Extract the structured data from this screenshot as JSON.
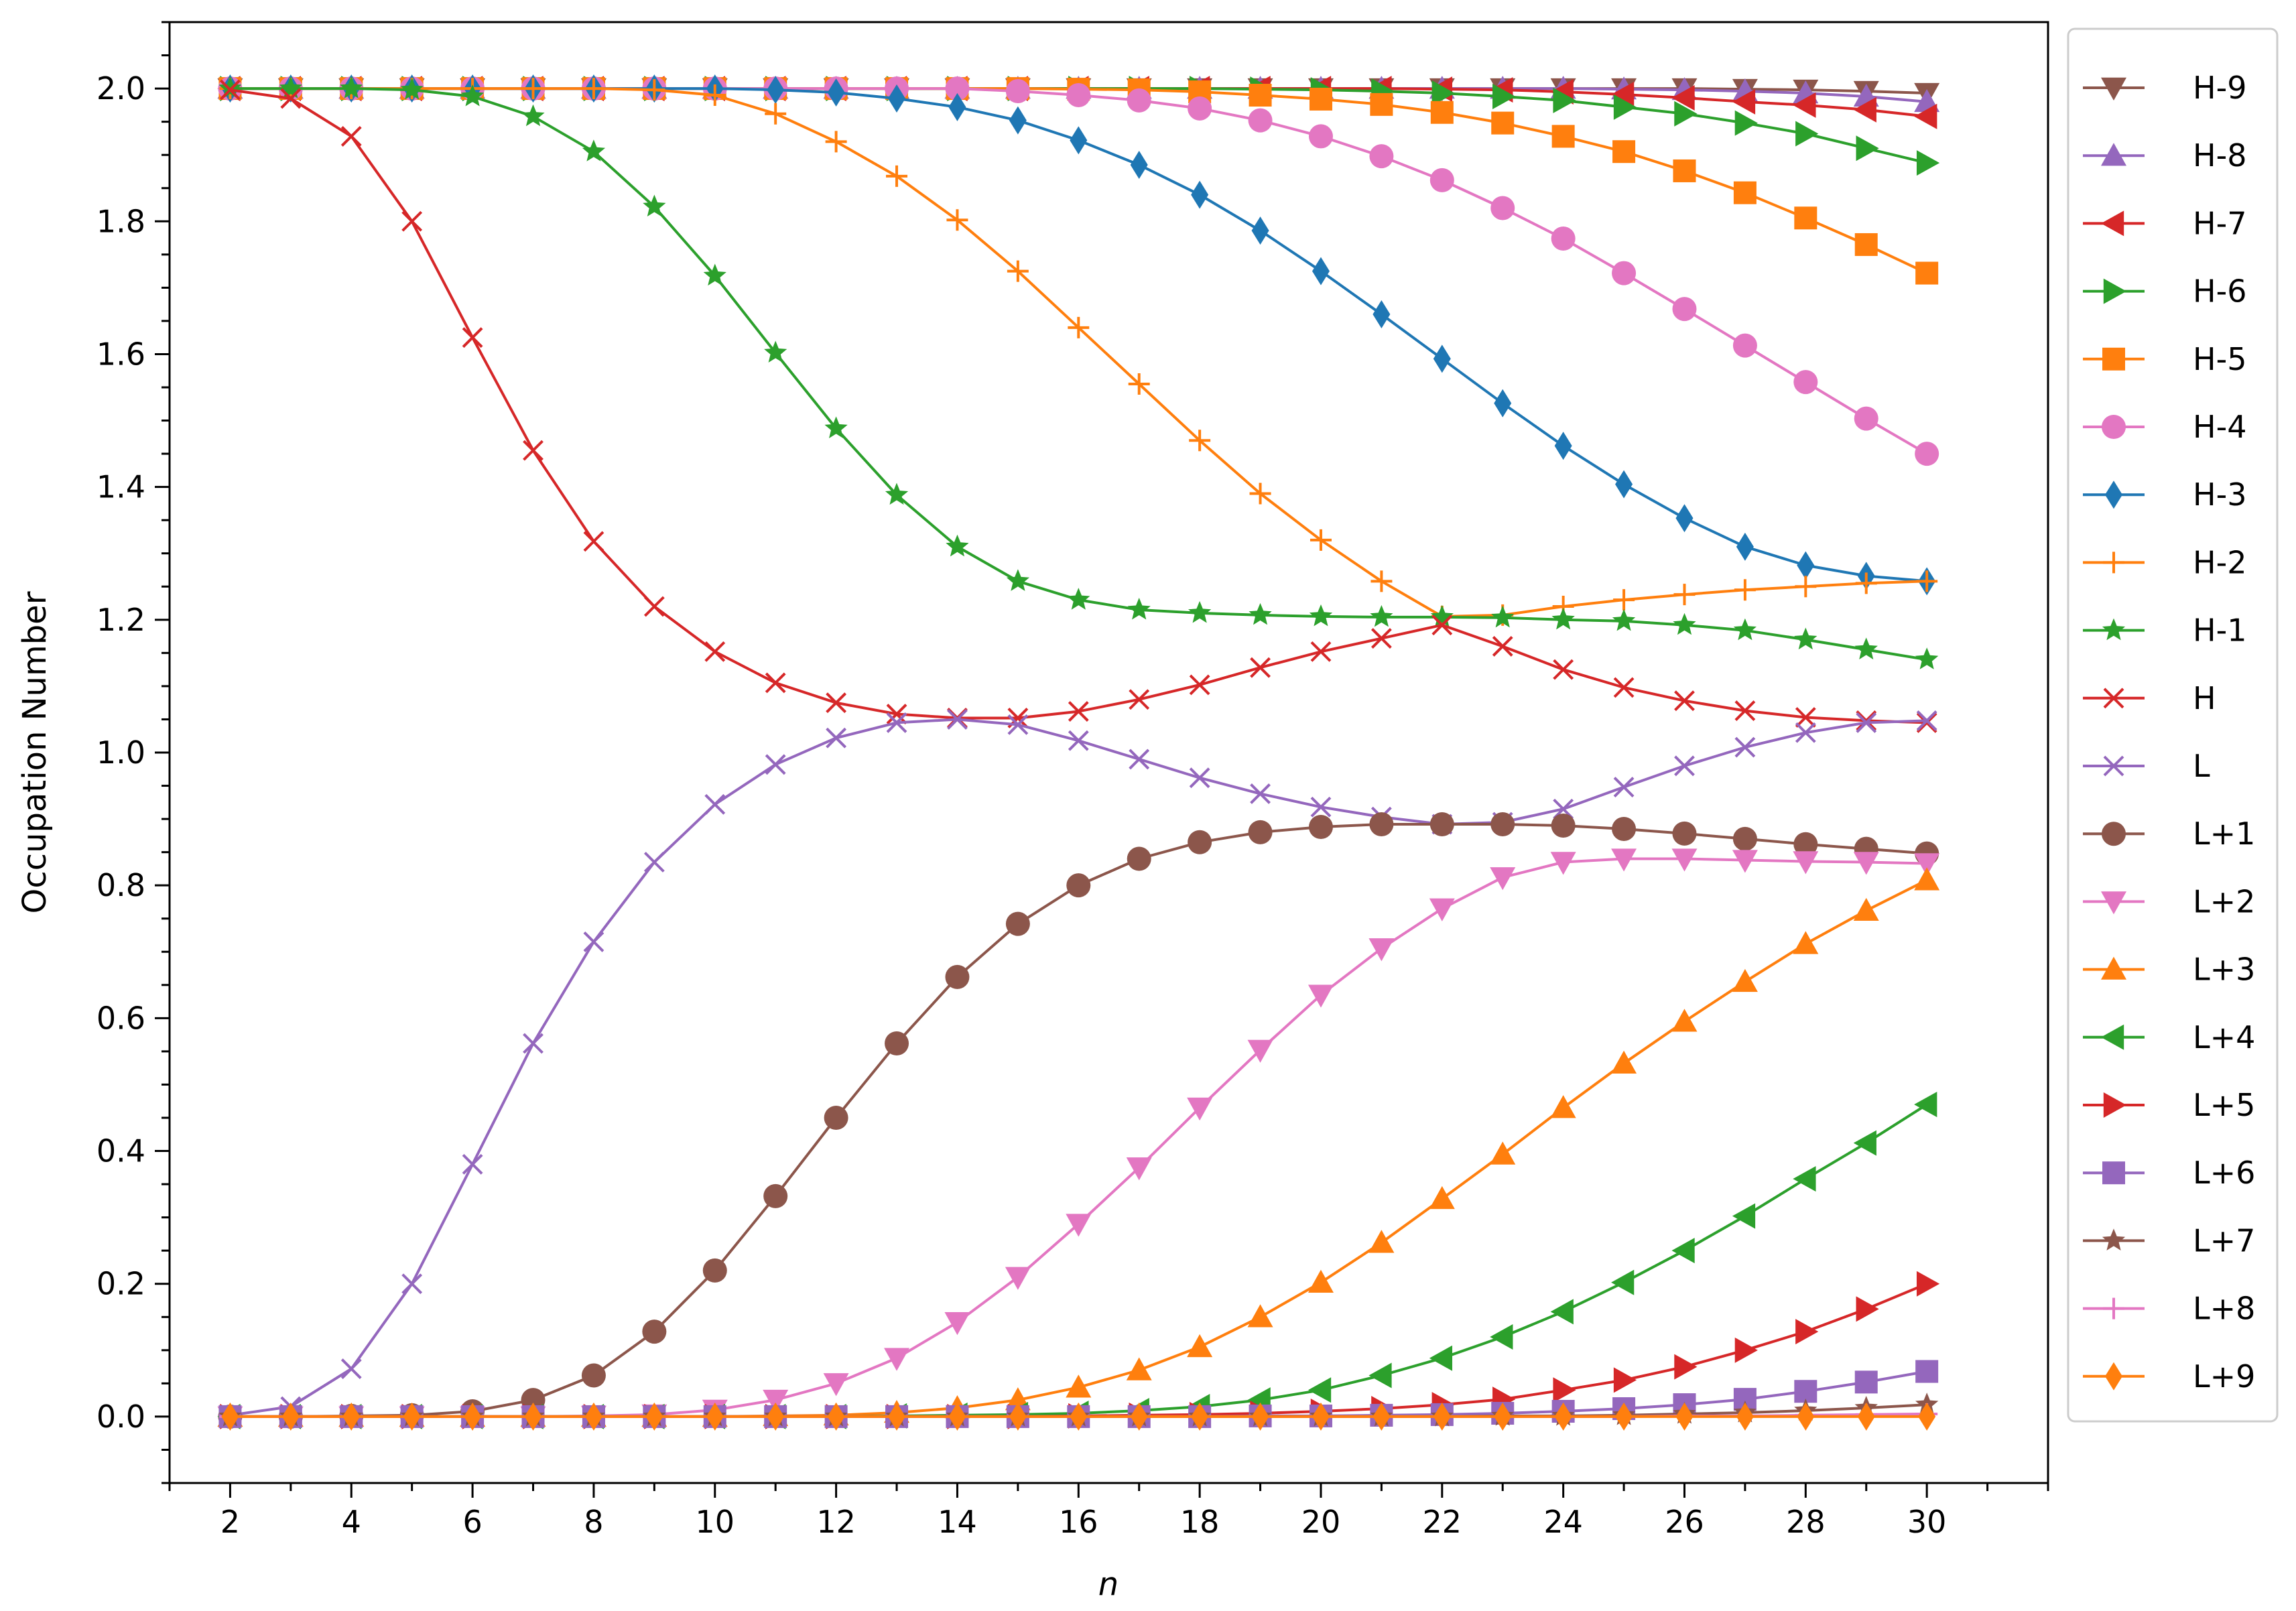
{
  "chart_data": {
    "type": "line",
    "title": "",
    "xlabel": "n",
    "ylabel": "Occupation Number",
    "xlim": [
      1,
      32
    ],
    "ylim": [
      -0.1,
      2.1
    ],
    "xticks": [
      2,
      4,
      6,
      8,
      10,
      12,
      14,
      16,
      18,
      20,
      22,
      24,
      26,
      28,
      30
    ],
    "yticks": [
      0.0,
      0.2,
      0.4,
      0.6,
      0.8,
      1.0,
      1.2,
      1.4,
      1.6,
      1.8,
      2.0
    ],
    "xtick_labels": [
      "2",
      "4",
      "6",
      "8",
      "10",
      "12",
      "14",
      "16",
      "18",
      "20",
      "22",
      "24",
      "26",
      "28",
      "30"
    ],
    "ytick_labels": [
      "0.0",
      "0.2",
      "0.4",
      "0.6",
      "0.8",
      "1.0",
      "1.2",
      "1.4",
      "1.6",
      "1.8",
      "2.0"
    ],
    "grid": false,
    "legend_placement": "outside-right",
    "x": [
      2,
      3,
      4,
      5,
      6,
      7,
      8,
      9,
      10,
      11,
      12,
      13,
      14,
      15,
      16,
      17,
      18,
      19,
      20,
      21,
      22,
      23,
      24,
      25,
      26,
      27,
      28,
      29,
      30
    ],
    "series": [
      {
        "name": "H-9",
        "color": "#8c564b",
        "marker": "triangle-down",
        "values": [
          2.0,
          2.0,
          2.0,
          2.0,
          2.0,
          2.0,
          2.0,
          2.0,
          2.0,
          2.0,
          2.0,
          2.0,
          2.0,
          2.0,
          2.0,
          2.0,
          2.0,
          2.0,
          2.0,
          2.0,
          2.0,
          2.0,
          2.0,
          2.0,
          2.0,
          1.999,
          1.998,
          1.996,
          1.993
        ]
      },
      {
        "name": "H-8",
        "color": "#9467bd",
        "marker": "triangle-up",
        "values": [
          2.0,
          2.0,
          2.0,
          2.0,
          2.0,
          2.0,
          2.0,
          2.0,
          2.0,
          2.0,
          2.0,
          2.0,
          2.0,
          2.0,
          2.0,
          2.0,
          2.0,
          2.0,
          2.0,
          2.0,
          2.0,
          2.0,
          2.0,
          1.999,
          1.998,
          1.996,
          1.993,
          1.988,
          1.98
        ]
      },
      {
        "name": "H-7",
        "color": "#d62728",
        "marker": "triangle-left",
        "values": [
          2.0,
          2.0,
          2.0,
          2.0,
          2.0,
          2.0,
          2.0,
          2.0,
          2.0,
          2.0,
          2.0,
          2.0,
          2.0,
          2.0,
          2.0,
          2.0,
          2.0,
          2.0,
          2.0,
          2.0,
          1.999,
          1.998,
          1.995,
          1.991,
          1.986,
          1.98,
          1.975,
          1.968,
          1.958
        ]
      },
      {
        "name": "H-6",
        "color": "#2ca02c",
        "marker": "triangle-right",
        "values": [
          2.0,
          2.0,
          2.0,
          2.0,
          2.0,
          2.0,
          2.0,
          2.0,
          2.0,
          2.0,
          2.0,
          2.0,
          2.0,
          2.0,
          2.0,
          2.0,
          2.0,
          1.999,
          1.998,
          1.996,
          1.993,
          1.988,
          1.982,
          1.972,
          1.962,
          1.948,
          1.932,
          1.91,
          1.888
        ]
      },
      {
        "name": "H-5",
        "color": "#ff7f0e",
        "marker": "square",
        "values": [
          2.0,
          2.0,
          2.0,
          2.0,
          2.0,
          2.0,
          2.0,
          2.0,
          2.0,
          2.0,
          2.0,
          2.0,
          2.0,
          2.0,
          1.999,
          1.998,
          1.995,
          1.99,
          1.984,
          1.976,
          1.964,
          1.948,
          1.928,
          1.905,
          1.876,
          1.843,
          1.805,
          1.765,
          1.722
        ]
      },
      {
        "name": "H-4",
        "color": "#e377c2",
        "marker": "circle",
        "values": [
          2.0,
          2.0,
          2.0,
          2.0,
          2.0,
          2.0,
          2.0,
          2.0,
          2.0,
          2.0,
          2.0,
          2.0,
          2.0,
          1.996,
          1.99,
          1.982,
          1.97,
          1.952,
          1.928,
          1.898,
          1.862,
          1.82,
          1.774,
          1.722,
          1.668,
          1.613,
          1.558,
          1.503,
          1.45
        ]
      },
      {
        "name": "H-3",
        "color": "#1f77b4",
        "marker": "thin-diamond",
        "values": [
          2.0,
          2.0,
          2.0,
          2.0,
          2.0,
          2.0,
          2.0,
          2.0,
          2.0,
          1.998,
          1.994,
          1.985,
          1.972,
          1.952,
          1.922,
          1.885,
          1.84,
          1.786,
          1.725,
          1.66,
          1.593,
          1.526,
          1.462,
          1.404,
          1.353,
          1.31,
          1.282,
          1.266,
          1.258
        ]
      },
      {
        "name": "H-2",
        "color": "#ff7f0e",
        "marker": "plus",
        "values": [
          2.0,
          2.0,
          2.0,
          2.0,
          2.0,
          2.0,
          2.0,
          1.998,
          1.99,
          1.962,
          1.92,
          1.868,
          1.802,
          1.725,
          1.64,
          1.555,
          1.47,
          1.39,
          1.32,
          1.258,
          1.205,
          1.207,
          1.22,
          1.23,
          1.238,
          1.245,
          1.25,
          1.255,
          1.258
        ]
      },
      {
        "name": "H-1",
        "color": "#2ca02c",
        "marker": "star",
        "values": [
          2.0,
          2.0,
          2.0,
          1.998,
          1.988,
          1.958,
          1.905,
          1.822,
          1.718,
          1.602,
          1.488,
          1.388,
          1.31,
          1.258,
          1.23,
          1.215,
          1.21,
          1.207,
          1.205,
          1.204,
          1.204,
          1.203,
          1.2,
          1.198,
          1.192,
          1.184,
          1.17,
          1.155,
          1.14
        ]
      },
      {
        "name": "H",
        "color": "#d62728",
        "marker": "x",
        "values": [
          1.998,
          1.985,
          1.928,
          1.8,
          1.625,
          1.455,
          1.318,
          1.22,
          1.152,
          1.105,
          1.075,
          1.058,
          1.052,
          1.052,
          1.062,
          1.08,
          1.102,
          1.128,
          1.152,
          1.172,
          1.192,
          1.16,
          1.125,
          1.098,
          1.078,
          1.063,
          1.053,
          1.048,
          1.045
        ]
      },
      {
        "name": "L",
        "color": "#9467bd",
        "marker": "x",
        "values": [
          0.002,
          0.015,
          0.072,
          0.2,
          0.38,
          0.562,
          0.715,
          0.835,
          0.922,
          0.982,
          1.022,
          1.045,
          1.05,
          1.042,
          1.018,
          0.99,
          0.962,
          0.938,
          0.918,
          0.903,
          0.892,
          0.895,
          0.915,
          0.948,
          0.98,
          1.008,
          1.03,
          1.045,
          1.048
        ]
      },
      {
        "name": "L+1",
        "color": "#8c564b",
        "marker": "circle",
        "values": [
          0.0,
          0.0,
          0.001,
          0.002,
          0.008,
          0.025,
          0.062,
          0.128,
          0.22,
          0.332,
          0.45,
          0.562,
          0.662,
          0.742,
          0.8,
          0.84,
          0.865,
          0.88,
          0.888,
          0.892,
          0.892,
          0.892,
          0.89,
          0.885,
          0.878,
          0.87,
          0.862,
          0.855,
          0.848
        ]
      },
      {
        "name": "L+2",
        "color": "#e377c2",
        "marker": "triangle-down",
        "values": [
          0.0,
          0.0,
          0.0,
          0.0,
          0.0,
          0.0,
          0.001,
          0.003,
          0.01,
          0.025,
          0.05,
          0.088,
          0.142,
          0.21,
          0.29,
          0.375,
          0.465,
          0.552,
          0.635,
          0.705,
          0.765,
          0.812,
          0.835,
          0.84,
          0.84,
          0.838,
          0.836,
          0.835,
          0.833
        ]
      },
      {
        "name": "L+3",
        "color": "#ff7f0e",
        "marker": "triangle-up",
        "values": [
          0.0,
          0.0,
          0.0,
          0.0,
          0.0,
          0.0,
          0.0,
          0.0,
          0.0,
          0.001,
          0.002,
          0.006,
          0.013,
          0.025,
          0.044,
          0.07,
          0.105,
          0.15,
          0.202,
          0.262,
          0.328,
          0.395,
          0.465,
          0.532,
          0.595,
          0.655,
          0.712,
          0.762,
          0.808
        ]
      },
      {
        "name": "L+4",
        "color": "#2ca02c",
        "marker": "triangle-left",
        "values": [
          0.0,
          0.0,
          0.0,
          0.0,
          0.0,
          0.0,
          0.0,
          0.0,
          0.0,
          0.0,
          0.0,
          0.001,
          0.002,
          0.003,
          0.005,
          0.009,
          0.015,
          0.025,
          0.04,
          0.062,
          0.088,
          0.12,
          0.158,
          0.202,
          0.25,
          0.302,
          0.358,
          0.412,
          0.47
        ]
      },
      {
        "name": "L+5",
        "color": "#d62728",
        "marker": "triangle-right",
        "values": [
          0.0,
          0.0,
          0.0,
          0.0,
          0.0,
          0.0,
          0.0,
          0.0,
          0.0,
          0.0,
          0.0,
          0.0,
          0.0,
          0.0,
          0.001,
          0.002,
          0.003,
          0.005,
          0.008,
          0.012,
          0.018,
          0.026,
          0.04,
          0.055,
          0.075,
          0.1,
          0.128,
          0.162,
          0.2
        ]
      },
      {
        "name": "L+6",
        "color": "#9467bd",
        "marker": "square",
        "values": [
          0.0,
          0.0,
          0.0,
          0.0,
          0.0,
          0.0,
          0.0,
          0.0,
          0.0,
          0.0,
          0.0,
          0.0,
          0.0,
          0.0,
          0.0,
          0.0,
          0.0,
          0.001,
          0.001,
          0.002,
          0.003,
          0.005,
          0.008,
          0.012,
          0.018,
          0.026,
          0.038,
          0.052,
          0.068
        ]
      },
      {
        "name": "L+7",
        "color": "#8c564b",
        "marker": "star",
        "values": [
          0.0,
          0.0,
          0.0,
          0.0,
          0.0,
          0.0,
          0.0,
          0.0,
          0.0,
          0.0,
          0.0,
          0.0,
          0.0,
          0.0,
          0.0,
          0.0,
          0.0,
          0.0,
          0.0,
          0.0,
          0.0,
          0.001,
          0.001,
          0.002,
          0.004,
          0.006,
          0.009,
          0.013,
          0.018
        ]
      },
      {
        "name": "L+8",
        "color": "#e377c2",
        "marker": "plus",
        "values": [
          0.0,
          0.0,
          0.0,
          0.0,
          0.0,
          0.0,
          0.0,
          0.0,
          0.0,
          0.0,
          0.0,
          0.0,
          0.0,
          0.0,
          0.0,
          0.0,
          0.0,
          0.0,
          0.0,
          0.0,
          0.0,
          0.0,
          0.0,
          0.0,
          0.001,
          0.001,
          0.002,
          0.003,
          0.004
        ]
      },
      {
        "name": "L+9",
        "color": "#ff7f0e",
        "marker": "thin-diamond",
        "values": [
          0.0,
          0.0,
          0.0,
          0.0,
          0.0,
          0.0,
          0.0,
          0.0,
          0.0,
          0.0,
          0.0,
          0.0,
          0.0,
          0.0,
          0.0,
          0.0,
          0.0,
          0.0,
          0.0,
          0.0,
          0.0,
          0.0,
          0.0,
          0.0,
          0.0,
          0.0,
          0.0,
          0.0,
          0.0
        ]
      }
    ]
  }
}
